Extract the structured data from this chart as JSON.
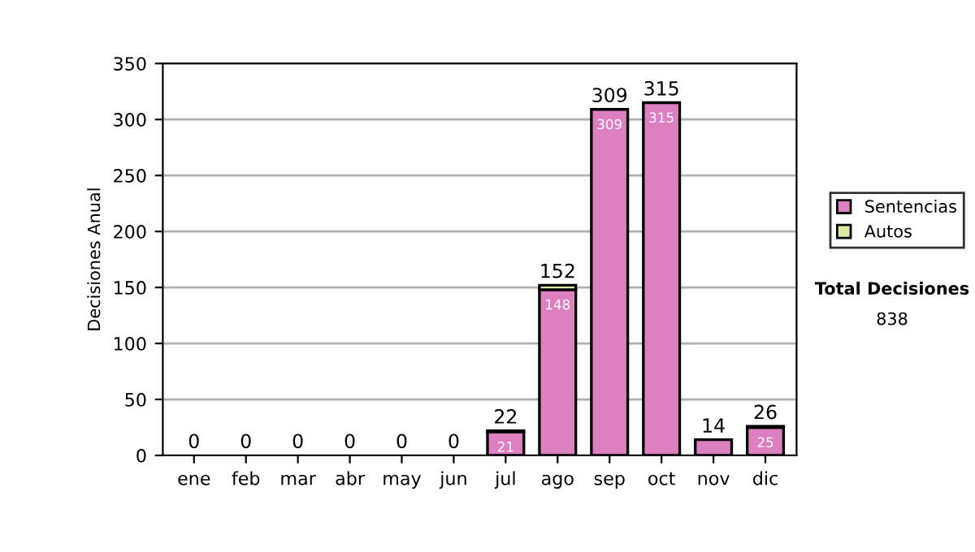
{
  "chart_data": {
    "type": "bar",
    "stacked": true,
    "ylabel": "Decisiones Anual",
    "categories": [
      "ene",
      "feb",
      "mar",
      "abr",
      "may",
      "jun",
      "jul",
      "ago",
      "sep",
      "oct",
      "nov",
      "dic"
    ],
    "series": [
      {
        "name": "Sentencias",
        "color": "#dd7fc0",
        "values": [
          0,
          0,
          0,
          0,
          0,
          0,
          21,
          148,
          309,
          315,
          14,
          25
        ],
        "value_labels": [
          null,
          null,
          null,
          null,
          null,
          null,
          "21",
          "148",
          "309",
          "315",
          null,
          "25"
        ]
      },
      {
        "name": "Autos",
        "color": "#d8eca0",
        "values": [
          0,
          0,
          0,
          0,
          0,
          0,
          1,
          4,
          0,
          0,
          0,
          1
        ]
      }
    ],
    "totals": [
      "0",
      "0",
      "0",
      "0",
      "0",
      "0",
      "22",
      "152",
      "309",
      "315",
      "14",
      "26"
    ],
    "ylim": [
      0,
      350
    ],
    "yticks": [
      0,
      50,
      100,
      150,
      200,
      250,
      300,
      350
    ],
    "grid": "y",
    "legend": "right",
    "annotations": [
      "Total Decisiones",
      "838"
    ]
  }
}
